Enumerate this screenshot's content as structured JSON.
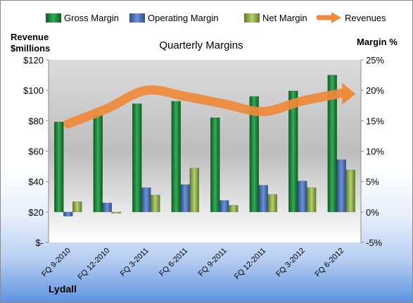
{
  "chart_data": {
    "type": "bar",
    "title": "Quarterly Margins",
    "ylabel_left": "Revenue\n$millions",
    "ylabel_right": "Margin %",
    "footer": "Lydall",
    "categories": [
      "FQ 9-2010",
      "FQ 12-2010",
      "FQ 3-2011",
      "FQ 6-2011",
      "FQ 9-2011",
      "FQ 12-2011",
      "FQ 3-2012",
      "FQ 6-2012"
    ],
    "left_axis": {
      "min": 0,
      "max": 120,
      "step": 20,
      "tick_labels": [
        "$-",
        "$20",
        "$40",
        "$60",
        "$80",
        "$100",
        "$120"
      ]
    },
    "right_axis": {
      "min": -5,
      "max": 25,
      "step": 5,
      "tick_labels": [
        "-5%",
        "0%",
        "5%",
        "10%",
        "15%",
        "20%",
        "25%"
      ]
    },
    "series": [
      {
        "name": "Gross Margin",
        "axis": "right",
        "color": "#1f8a3c",
        "values": [
          14.8,
          16.0,
          17.8,
          18.2,
          15.5,
          19.0,
          19.9,
          22.5
        ]
      },
      {
        "name": "Operating Margin",
        "axis": "right",
        "color": "#4a6fb5",
        "values": [
          -0.7,
          1.5,
          4.0,
          4.5,
          1.9,
          4.4,
          5.1,
          8.6
        ]
      },
      {
        "name": "Net Margin",
        "axis": "right",
        "color": "#8fb04a",
        "values": [
          1.7,
          -0.2,
          2.8,
          7.2,
          1.1,
          2.9,
          4.0,
          6.9
        ]
      },
      {
        "name": "Revenues",
        "axis": "left",
        "type": "line",
        "color": "#ef8a3a",
        "values": [
          78,
          88,
          100,
          96,
          91,
          86,
          93,
          98
        ]
      }
    ],
    "legend_position": "top",
    "grid": false
  }
}
